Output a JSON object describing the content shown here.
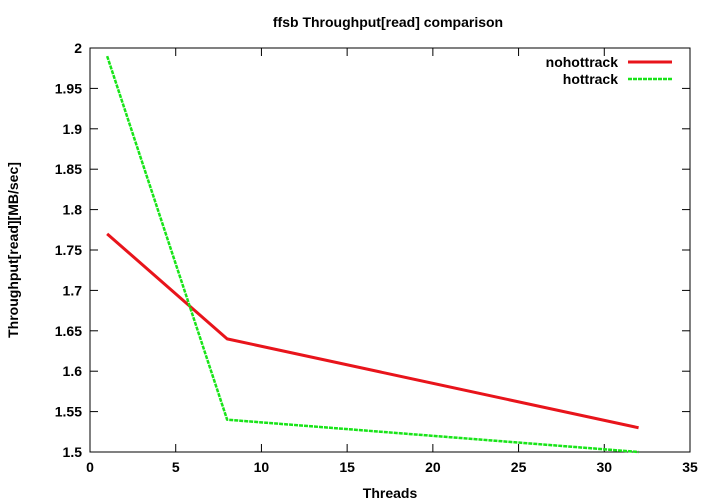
{
  "chart_data": {
    "type": "line",
    "title": "ffsb Throughput[read] comparison",
    "xlabel": "Threads",
    "ylabel": "Throughput[read][MB/sec]",
    "xlim": [
      0,
      35
    ],
    "ylim": [
      1.5,
      2.0
    ],
    "xticks": [
      0,
      5,
      10,
      15,
      20,
      25,
      30,
      35
    ],
    "xtick_labels": [
      "0",
      "5",
      "10",
      "15",
      "20",
      "25",
      "30",
      "35"
    ],
    "yticks": [
      1.5,
      1.55,
      1.6,
      1.65,
      1.7,
      1.75,
      1.8,
      1.85,
      1.9,
      1.95,
      2.0
    ],
    "ytick_labels": [
      "1.5",
      "1.55",
      "1.6",
      "1.65",
      "1.7",
      "1.75",
      "1.8",
      "1.85",
      "1.9",
      "1.95",
      "2"
    ],
    "grid": false,
    "legend_position": "top-right",
    "series": [
      {
        "name": "nohottrack",
        "color": "#e8141b",
        "dash": "solid",
        "points": [
          [
            1,
            1.77
          ],
          [
            8,
            1.64
          ],
          [
            32,
            1.53
          ]
        ]
      },
      {
        "name": "hottrack",
        "color": "#18e418",
        "dash": "dashed",
        "points": [
          [
            1,
            1.99
          ],
          [
            8,
            1.54
          ],
          [
            32,
            1.5
          ]
        ]
      }
    ]
  }
}
